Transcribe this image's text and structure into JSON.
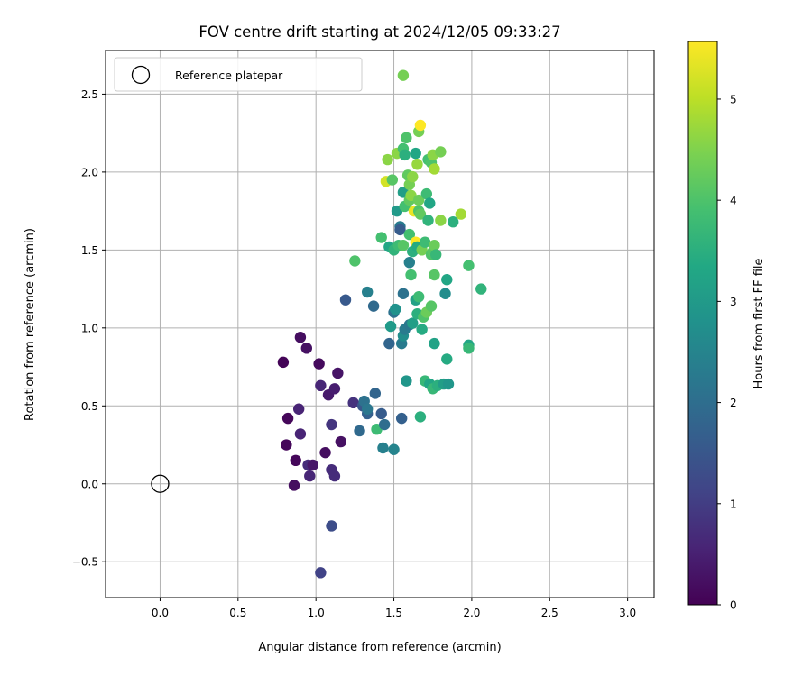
{
  "chart_data": {
    "type": "scatter",
    "title": "FOV centre drift starting at 2024/12/05 09:33:27",
    "xlabel": "Angular distance from reference (arcmin)",
    "ylabel": "Rotation from reference (arcmin)",
    "xlim": [
      -0.35,
      3.17
    ],
    "ylim": [
      -0.73,
      2.78
    ],
    "xticks": [
      0.0,
      0.5,
      1.0,
      1.5,
      2.0,
      2.5,
      3.0
    ],
    "xtick_labels": [
      "0.0",
      "0.5",
      "1.0",
      "1.5",
      "2.0",
      "2.5",
      "3.0"
    ],
    "yticks": [
      -0.5,
      0.0,
      0.5,
      1.0,
      1.5,
      2.0,
      2.5
    ],
    "ytick_labels": [
      "−0.5",
      "0.0",
      "0.5",
      "1.0",
      "1.5",
      "2.0",
      "2.5"
    ],
    "grid": true,
    "legend": {
      "position": "top-left",
      "entries": [
        {
          "label": "Reference platepar",
          "marker": "open-circle"
        }
      ]
    },
    "reference_point": {
      "x": 0.0,
      "y": 0.0
    },
    "colorbar": {
      "label": "Hours from first FF file",
      "colormap": "viridis",
      "range": [
        0,
        5.57
      ],
      "ticks": [
        0,
        1,
        2,
        3,
        4,
        5
      ],
      "tick_labels": [
        "0",
        "1",
        "2",
        "3",
        "4",
        "5"
      ]
    },
    "points": [
      {
        "x": 0.79,
        "y": 0.78,
        "c": 0.05
      },
      {
        "x": 0.81,
        "y": 0.25,
        "c": 0.1
      },
      {
        "x": 0.82,
        "y": 0.42,
        "c": 0.1
      },
      {
        "x": 0.86,
        "y": -0.01,
        "c": 0.2
      },
      {
        "x": 0.87,
        "y": 0.15,
        "c": 0.1
      },
      {
        "x": 0.9,
        "y": 0.94,
        "c": 0.2
      },
      {
        "x": 0.89,
        "y": 0.48,
        "c": 0.55
      },
      {
        "x": 0.9,
        "y": 0.32,
        "c": 0.55
      },
      {
        "x": 0.94,
        "y": 0.87,
        "c": 0.25
      },
      {
        "x": 0.95,
        "y": 0.12,
        "c": 0.7
      },
      {
        "x": 0.96,
        "y": 0.05,
        "c": 0.6
      },
      {
        "x": 0.98,
        "y": 0.12,
        "c": 0.35
      },
      {
        "x": 1.02,
        "y": 0.77,
        "c": 0.15
      },
      {
        "x": 1.03,
        "y": 0.63,
        "c": 0.6
      },
      {
        "x": 1.06,
        "y": 0.2,
        "c": 0.2
      },
      {
        "x": 1.08,
        "y": 0.57,
        "c": 0.4
      },
      {
        "x": 1.1,
        "y": 0.09,
        "c": 0.7
      },
      {
        "x": 1.1,
        "y": 0.38,
        "c": 0.85
      },
      {
        "x": 1.12,
        "y": 0.61,
        "c": 0.45
      },
      {
        "x": 1.12,
        "y": 0.05,
        "c": 0.7
      },
      {
        "x": 1.14,
        "y": 0.71,
        "c": 0.3
      },
      {
        "x": 1.16,
        "y": 0.27,
        "c": 0.25
      },
      {
        "x": 1.1,
        "y": -0.27,
        "c": 1.3
      },
      {
        "x": 1.03,
        "y": -0.57,
        "c": 1.1
      },
      {
        "x": 1.19,
        "y": 1.18,
        "c": 1.55
      },
      {
        "x": 1.24,
        "y": 0.52,
        "c": 0.8
      },
      {
        "x": 1.28,
        "y": 0.34,
        "c": 1.9
      },
      {
        "x": 1.3,
        "y": 0.5,
        "c": 1.5
      },
      {
        "x": 1.31,
        "y": 0.53,
        "c": 2.1
      },
      {
        "x": 1.33,
        "y": 0.45,
        "c": 1.7
      },
      {
        "x": 1.33,
        "y": 0.48,
        "c": 2.2
      },
      {
        "x": 1.33,
        "y": 1.23,
        "c": 2.4
      },
      {
        "x": 1.37,
        "y": 1.14,
        "c": 1.9
      },
      {
        "x": 1.38,
        "y": 0.58,
        "c": 1.8
      },
      {
        "x": 1.39,
        "y": 0.35,
        "c": 3.8
      },
      {
        "x": 1.42,
        "y": 0.45,
        "c": 1.6
      },
      {
        "x": 1.43,
        "y": 0.23,
        "c": 2.4
      },
      {
        "x": 1.44,
        "y": 0.38,
        "c": 2.0
      },
      {
        "x": 1.47,
        "y": 0.9,
        "c": 1.8
      },
      {
        "x": 1.48,
        "y": 1.01,
        "c": 3.0
      },
      {
        "x": 1.5,
        "y": 1.1,
        "c": 2.1
      },
      {
        "x": 1.51,
        "y": 1.12,
        "c": 2.8
      },
      {
        "x": 1.5,
        "y": 0.22,
        "c": 2.5
      },
      {
        "x": 1.55,
        "y": 0.42,
        "c": 1.7
      },
      {
        "x": 1.55,
        "y": 0.9,
        "c": 2.3
      },
      {
        "x": 1.56,
        "y": 0.95,
        "c": 2.7
      },
      {
        "x": 1.57,
        "y": 0.99,
        "c": 2.3
      },
      {
        "x": 1.58,
        "y": 0.66,
        "c": 2.9
      },
      {
        "x": 1.56,
        "y": 1.22,
        "c": 2.1
      },
      {
        "x": 1.6,
        "y": 1.02,
        "c": 2.2
      },
      {
        "x": 1.6,
        "y": 1.42,
        "c": 2.4
      },
      {
        "x": 1.61,
        "y": 1.34,
        "c": 3.9
      },
      {
        "x": 1.62,
        "y": 1.03,
        "c": 3.1
      },
      {
        "x": 1.64,
        "y": 1.18,
        "c": 3.2
      },
      {
        "x": 1.65,
        "y": 1.09,
        "c": 3.5
      },
      {
        "x": 1.66,
        "y": 1.2,
        "c": 3.8
      },
      {
        "x": 1.67,
        "y": 0.43,
        "c": 3.5
      },
      {
        "x": 1.68,
        "y": 0.99,
        "c": 3.4
      },
      {
        "x": 1.69,
        "y": 1.07,
        "c": 4.0
      },
      {
        "x": 1.7,
        "y": 0.66,
        "c": 3.7
      },
      {
        "x": 1.71,
        "y": 1.1,
        "c": 4.3
      },
      {
        "x": 1.73,
        "y": 0.64,
        "c": 3.3
      },
      {
        "x": 1.74,
        "y": 1.14,
        "c": 4.1
      },
      {
        "x": 1.75,
        "y": 0.61,
        "c": 3.7
      },
      {
        "x": 1.76,
        "y": 0.9,
        "c": 3.2
      },
      {
        "x": 1.78,
        "y": 0.63,
        "c": 3.5
      },
      {
        "x": 1.82,
        "y": 0.64,
        "c": 3.1
      },
      {
        "x": 1.83,
        "y": 1.22,
        "c": 2.7
      },
      {
        "x": 1.84,
        "y": 1.31,
        "c": 3.3
      },
      {
        "x": 1.84,
        "y": 0.8,
        "c": 3.4
      },
      {
        "x": 1.85,
        "y": 0.64,
        "c": 2.9
      },
      {
        "x": 1.98,
        "y": 0.89,
        "c": 3.3
      },
      {
        "x": 1.98,
        "y": 0.87,
        "c": 3.7
      },
      {
        "x": 1.98,
        "y": 1.4,
        "c": 3.9
      },
      {
        "x": 2.06,
        "y": 1.25,
        "c": 3.6
      },
      {
        "x": 1.25,
        "y": 1.43,
        "c": 4.0
      },
      {
        "x": 1.42,
        "y": 1.58,
        "c": 3.9
      },
      {
        "x": 1.47,
        "y": 1.52,
        "c": 3.3
      },
      {
        "x": 1.5,
        "y": 1.5,
        "c": 3.6
      },
      {
        "x": 1.53,
        "y": 1.53,
        "c": 3.8
      },
      {
        "x": 1.52,
        "y": 1.75,
        "c": 3.0
      },
      {
        "x": 1.54,
        "y": 1.65,
        "c": 2.3
      },
      {
        "x": 1.54,
        "y": 1.63,
        "c": 1.6
      },
      {
        "x": 1.56,
        "y": 1.53,
        "c": 4.1
      },
      {
        "x": 1.56,
        "y": 1.87,
        "c": 3.1
      },
      {
        "x": 1.57,
        "y": 1.78,
        "c": 3.9
      },
      {
        "x": 1.6,
        "y": 1.6,
        "c": 3.9
      },
      {
        "x": 1.6,
        "y": 1.82,
        "c": 4.2
      },
      {
        "x": 1.61,
        "y": 1.85,
        "c": 4.6
      },
      {
        "x": 1.62,
        "y": 1.49,
        "c": 3.5
      },
      {
        "x": 1.63,
        "y": 1.75,
        "c": 5.4
      },
      {
        "x": 1.64,
        "y": 1.55,
        "c": 5.6
      },
      {
        "x": 1.65,
        "y": 1.52,
        "c": 3.4
      },
      {
        "x": 1.66,
        "y": 1.82,
        "c": 4.3
      },
      {
        "x": 1.66,
        "y": 1.75,
        "c": 4.0
      },
      {
        "x": 1.67,
        "y": 1.73,
        "c": 4.2
      },
      {
        "x": 1.68,
        "y": 1.5,
        "c": 4.4
      },
      {
        "x": 1.7,
        "y": 1.55,
        "c": 3.8
      },
      {
        "x": 1.71,
        "y": 1.86,
        "c": 3.8
      },
      {
        "x": 1.72,
        "y": 1.69,
        "c": 3.6
      },
      {
        "x": 1.73,
        "y": 1.8,
        "c": 3.3
      },
      {
        "x": 1.74,
        "y": 1.47,
        "c": 4.0
      },
      {
        "x": 1.75,
        "y": 1.49,
        "c": 4.1
      },
      {
        "x": 1.76,
        "y": 1.53,
        "c": 4.3
      },
      {
        "x": 1.77,
        "y": 1.47,
        "c": 3.7
      },
      {
        "x": 1.76,
        "y": 1.34,
        "c": 4.1
      },
      {
        "x": 1.8,
        "y": 1.69,
        "c": 4.6
      },
      {
        "x": 1.88,
        "y": 1.68,
        "c": 3.5
      },
      {
        "x": 1.93,
        "y": 1.73,
        "c": 4.8
      },
      {
        "x": 1.45,
        "y": 1.94,
        "c": 5.2
      },
      {
        "x": 1.46,
        "y": 2.08,
        "c": 4.6
      },
      {
        "x": 1.49,
        "y": 1.95,
        "c": 4.1
      },
      {
        "x": 1.52,
        "y": 2.12,
        "c": 4.6
      },
      {
        "x": 1.56,
        "y": 2.15,
        "c": 3.9
      },
      {
        "x": 1.57,
        "y": 2.11,
        "c": 3.5
      },
      {
        "x": 1.58,
        "y": 2.22,
        "c": 4.0
      },
      {
        "x": 1.59,
        "y": 1.98,
        "c": 4.2
      },
      {
        "x": 1.6,
        "y": 1.92,
        "c": 4.4
      },
      {
        "x": 1.62,
        "y": 1.97,
        "c": 4.6
      },
      {
        "x": 1.64,
        "y": 2.12,
        "c": 3.3
      },
      {
        "x": 1.65,
        "y": 2.05,
        "c": 4.7
      },
      {
        "x": 1.66,
        "y": 2.26,
        "c": 4.4
      },
      {
        "x": 1.67,
        "y": 2.3,
        "c": 5.6
      },
      {
        "x": 1.72,
        "y": 2.08,
        "c": 3.9
      },
      {
        "x": 1.74,
        "y": 2.06,
        "c": 4.0
      },
      {
        "x": 1.75,
        "y": 2.11,
        "c": 4.6
      },
      {
        "x": 1.76,
        "y": 2.02,
        "c": 4.8
      },
      {
        "x": 1.8,
        "y": 2.13,
        "c": 4.4
      },
      {
        "x": 1.56,
        "y": 2.62,
        "c": 4.4
      }
    ]
  }
}
